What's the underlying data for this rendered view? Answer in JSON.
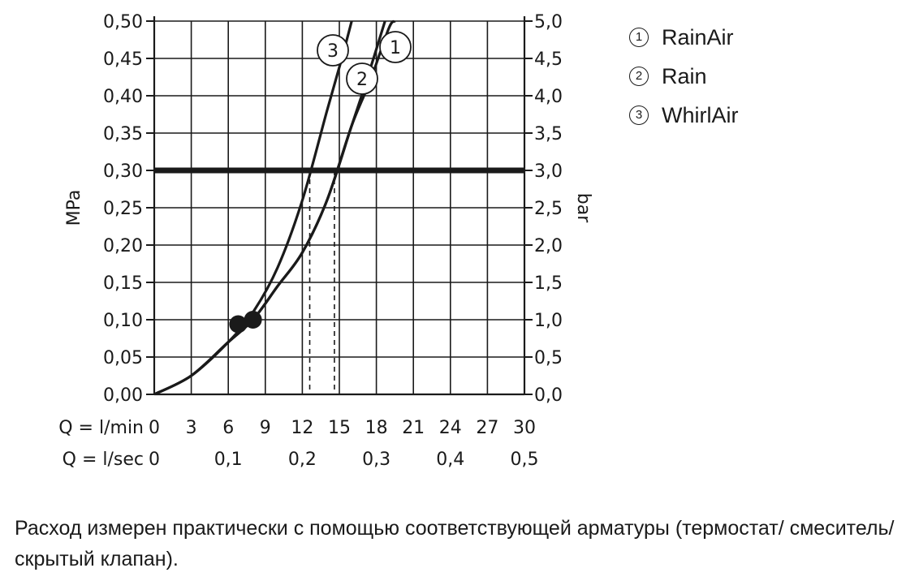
{
  "chart_data": {
    "type": "line",
    "y_left": {
      "label": "MPa",
      "ticks": [
        "0,00",
        "0,05",
        "0,10",
        "0,15",
        "0,20",
        "0,25",
        "0,30",
        "0,35",
        "0,40",
        "0,45",
        "0,50"
      ],
      "range": [
        0,
        0.5
      ]
    },
    "y_right": {
      "label": "bar",
      "ticks": [
        "0,0",
        "0,5",
        "1,0",
        "1,5",
        "2,0",
        "2,5",
        "3,0",
        "3,5",
        "4,0",
        "4,5",
        "5,0"
      ],
      "range": [
        0,
        5
      ]
    },
    "x_lmin": {
      "label": "Q = l/min",
      "ticks": [
        "0",
        "3",
        "6",
        "9",
        "12",
        "15",
        "18",
        "21",
        "24",
        "27",
        "30"
      ],
      "range": [
        0,
        30
      ]
    },
    "x_lsec": {
      "label": "Q = l/sec",
      "ticks": [
        "0",
        "0,1",
        "0,2",
        "0,3",
        "0,4",
        "0,5"
      ]
    },
    "grid": true,
    "reference_line": {
      "y": 0.3
    },
    "dashed_markers": [
      {
        "x": 12.6
      },
      {
        "x": 14.6
      }
    ],
    "points": [
      {
        "x": 6.8,
        "y": 0.094
      },
      {
        "x": 8.0,
        "y": 0.1
      }
    ],
    "series": [
      {
        "name": "1",
        "x": [
          0,
          3,
          6,
          8,
          10,
          12,
          14,
          16,
          17.5,
          19,
          19.5
        ],
        "y": [
          0,
          0.025,
          0.07,
          0.1,
          0.145,
          0.19,
          0.26,
          0.36,
          0.42,
          0.49,
          0.5
        ]
      },
      {
        "name": "2",
        "x": [
          0,
          3,
          6,
          8,
          10,
          12,
          14,
          16,
          17.2,
          18.7
        ],
        "y": [
          0,
          0.025,
          0.07,
          0.1,
          0.145,
          0.19,
          0.26,
          0.36,
          0.42,
          0.5
        ]
      },
      {
        "name": "3",
        "x": [
          0,
          3,
          6,
          8,
          10,
          12,
          14,
          15.2,
          16.0
        ],
        "y": [
          0,
          0.025,
          0.07,
          0.11,
          0.17,
          0.26,
          0.38,
          0.45,
          0.5
        ]
      }
    ],
    "curve_labels": [
      "3",
      "1",
      "2"
    ]
  },
  "legend": [
    {
      "num": "1",
      "label": "RainAir"
    },
    {
      "num": "2",
      "label": "Rain"
    },
    {
      "num": "3",
      "label": "WhirlAir"
    }
  ],
  "note": "Расход измерен практически с помощью соответствующей арматуры (термостат/ смеситель/скрытый клапан)."
}
